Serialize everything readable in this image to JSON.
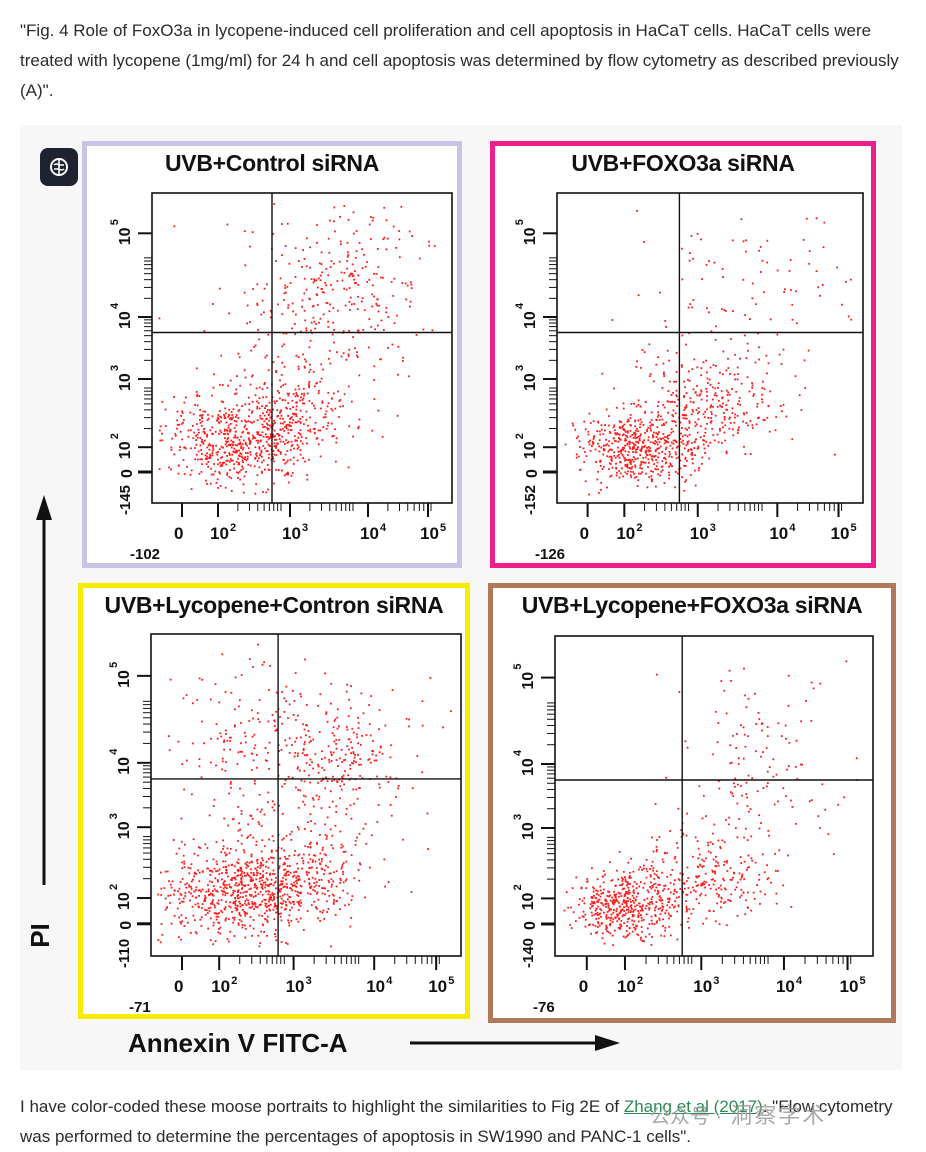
{
  "caption_top": "\"Fig. 4 Role of FoxO3a in lycopene-induced cell proliferation and cell apoptosis in HaCaT cells. HaCaT cells were treated with lycopene (1mg/ml) for 24 h and cell apoptosis was determined by flow cytometry as described previously (A)\".",
  "figure": {
    "y_axis_label": "PI",
    "x_axis_label": "Annexin V FITC-A",
    "panels": [
      {
        "title": "UVB+Control siRNA",
        "border": "#c9c3e6",
        "y_min_label": "-145",
        "x_min_label": "-102"
      },
      {
        "title": "UVB+FOXO3a siRNA",
        "border": "#ee1f8a",
        "y_min_label": "-152",
        "x_min_label": "-126"
      },
      {
        "title": "UVB+Lycopene+Contron siRNA",
        "border": "#f7ec00",
        "y_min_label": "-110",
        "x_min_label": "-71"
      },
      {
        "title": "UVB+Lycopene+FOXO3a siRNA",
        "border": "#b07a5a",
        "y_min_label": "-140",
        "x_min_label": "-76"
      }
    ],
    "tick_zero": "0",
    "tick_base": "10",
    "tick_exponents": [
      "2",
      "3",
      "4",
      "5"
    ],
    "dot_color": "#ff1a1a"
  },
  "caption_bottom": {
    "before": "I have color-coded these moose portraits to highlight the similarities to Fig 2E of ",
    "link": "Zhang et al (2017)",
    "after": ". \"Flow cytometry was performed to determine the percentages of apoptosis in SW1990 and PANC-1 cells\"."
  },
  "watermark": {
    "left": "公众号 ·",
    "right": "洞察学术"
  }
}
